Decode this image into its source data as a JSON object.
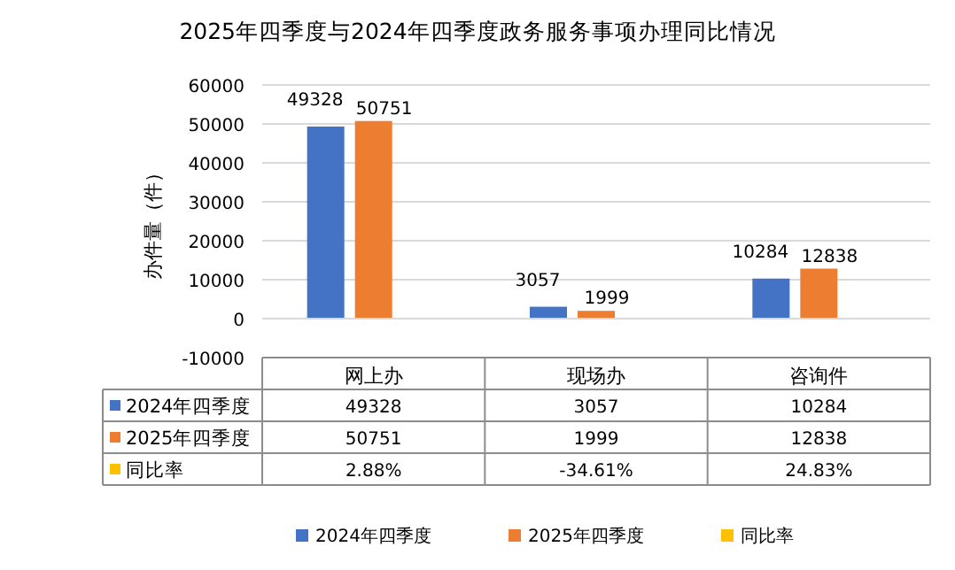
{
  "chart_data": {
    "type": "bar",
    "title": "2025年四季度与2024年四季度政务服务事项办理同比情况",
    "ylabel": "办件量（件）",
    "categories": [
      "网上办",
      "现场办",
      "咨询件"
    ],
    "series": [
      {
        "name": "2024年四季度",
        "color": "#4472c4",
        "values": [
          49328,
          3057,
          10284
        ],
        "value_labels": [
          "49328",
          "3057",
          "10284"
        ],
        "data_labels": true
      },
      {
        "name": "2025年四季度",
        "color": "#ed7d31",
        "values": [
          50751,
          1999,
          12838
        ],
        "value_labels": [
          "50751",
          "1999",
          "12838"
        ],
        "data_labels": true
      },
      {
        "name": "同比率",
        "color": "#ffc000",
        "values": [
          2.88,
          -34.61,
          24.83
        ],
        "value_labels": [
          "2.88%",
          "-34.61%",
          "24.83%"
        ]
      }
    ],
    "ylim": [
      -10000,
      60000
    ],
    "yticks": [
      -10000,
      0,
      10000,
      20000,
      30000,
      40000,
      50000,
      60000
    ],
    "grid": "y",
    "legend": "bottom"
  }
}
